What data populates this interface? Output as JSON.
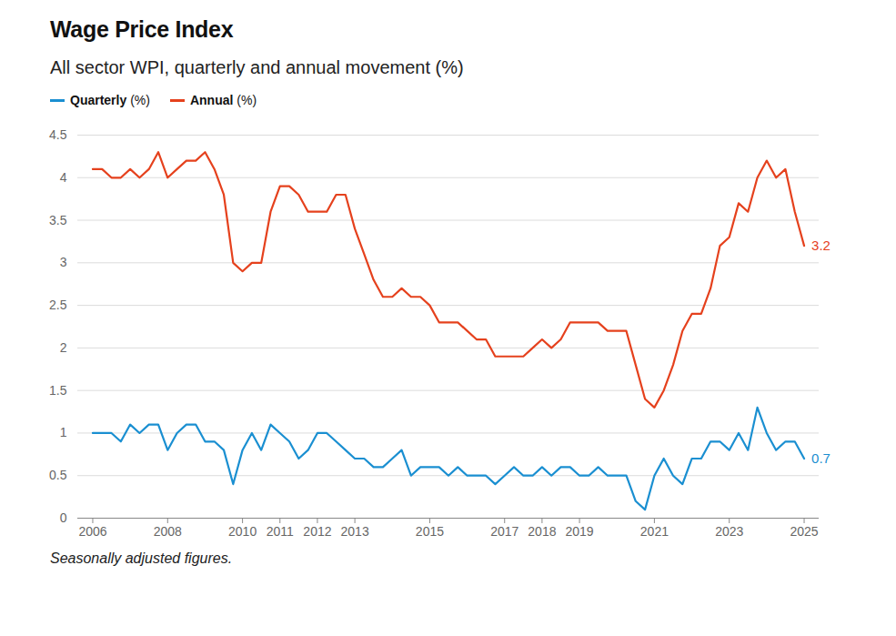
{
  "chart_data": {
    "type": "line",
    "title": "Wage Price Index",
    "subtitle": "All sector WPI, quarterly and annual movement (%)",
    "caption": "Seasonally adjusted figures.",
    "x": [
      2006,
      2006.25,
      2006.5,
      2006.75,
      2007,
      2007.25,
      2007.5,
      2007.75,
      2008,
      2008.25,
      2008.5,
      2008.75,
      2009,
      2009.25,
      2009.5,
      2009.75,
      2010,
      2010.25,
      2010.5,
      2010.75,
      2011,
      2011.25,
      2011.5,
      2011.75,
      2012,
      2012.25,
      2012.5,
      2012.75,
      2013,
      2013.25,
      2013.5,
      2013.75,
      2014,
      2014.25,
      2014.5,
      2014.75,
      2015,
      2015.25,
      2015.5,
      2015.75,
      2016,
      2016.25,
      2016.5,
      2016.75,
      2017,
      2017.25,
      2017.5,
      2017.75,
      2018,
      2018.25,
      2018.5,
      2018.75,
      2019,
      2019.25,
      2019.5,
      2019.75,
      2020,
      2020.25,
      2020.5,
      2020.75,
      2021,
      2021.25,
      2021.5,
      2021.75,
      2022,
      2022.25,
      2022.5,
      2022.75,
      2023,
      2023.25,
      2023.5,
      2023.75,
      2024,
      2024.25,
      2024.5,
      2024.75,
      2025
    ],
    "series": [
      {
        "name": "Quarterly (%)",
        "color": "#1a8fd1",
        "values": [
          1.0,
          1.0,
          1.0,
          0.9,
          1.1,
          1.0,
          1.1,
          1.1,
          0.8,
          1.0,
          1.1,
          1.1,
          0.9,
          0.9,
          0.8,
          0.4,
          0.8,
          1.0,
          0.8,
          1.1,
          1.0,
          0.9,
          0.7,
          0.8,
          1.0,
          1.0,
          0.9,
          0.8,
          0.7,
          0.7,
          0.6,
          0.6,
          0.7,
          0.8,
          0.5,
          0.6,
          0.6,
          0.6,
          0.5,
          0.6,
          0.5,
          0.5,
          0.5,
          0.4,
          0.5,
          0.6,
          0.5,
          0.5,
          0.6,
          0.5,
          0.6,
          0.6,
          0.5,
          0.5,
          0.6,
          0.5,
          0.5,
          0.5,
          0.2,
          0.1,
          0.5,
          0.7,
          0.5,
          0.4,
          0.7,
          0.7,
          0.9,
          0.9,
          0.8,
          1.0,
          0.8,
          1.3,
          1.0,
          0.8,
          0.9,
          0.9,
          0.7
        ]
      },
      {
        "name": "Annual (%)",
        "color": "#e5411d",
        "values": [
          4.1,
          4.1,
          4.0,
          4.0,
          4.1,
          4.0,
          4.1,
          4.3,
          4.0,
          4.1,
          4.2,
          4.2,
          4.3,
          4.1,
          3.8,
          3.0,
          2.9,
          3.0,
          3.0,
          3.6,
          3.9,
          3.9,
          3.8,
          3.6,
          3.6,
          3.6,
          3.8,
          3.8,
          3.4,
          3.1,
          2.8,
          2.6,
          2.6,
          2.7,
          2.6,
          2.6,
          2.5,
          2.3,
          2.3,
          2.3,
          2.2,
          2.1,
          2.1,
          1.9,
          1.9,
          1.9,
          1.9,
          2.0,
          2.1,
          2.0,
          2.1,
          2.3,
          2.3,
          2.3,
          2.3,
          2.2,
          2.2,
          2.2,
          1.8,
          1.4,
          1.3,
          1.5,
          1.8,
          2.2,
          2.4,
          2.4,
          2.7,
          3.2,
          3.3,
          3.7,
          3.6,
          4.0,
          4.2,
          4.0,
          4.1,
          3.6,
          3.2
        ]
      }
    ],
    "annotations": [
      {
        "series": "Annual (%)",
        "x": 2025,
        "y": 3.2,
        "text": "3.2"
      },
      {
        "series": "Quarterly (%)",
        "x": 2025,
        "y": 0.7,
        "text": "0.7"
      }
    ],
    "xlim": [
      2005.6,
      2025.4
    ],
    "xticks": [
      2006,
      2008,
      2010,
      2011,
      2012,
      2013,
      2015,
      2017,
      2018,
      2019,
      2021,
      2023,
      2025
    ],
    "ylim": [
      0,
      4.5
    ],
    "yticks": [
      0,
      0.5,
      1,
      1.5,
      2,
      2.5,
      3,
      3.5,
      4,
      4.5
    ],
    "grid": true,
    "legend": "top-left"
  }
}
